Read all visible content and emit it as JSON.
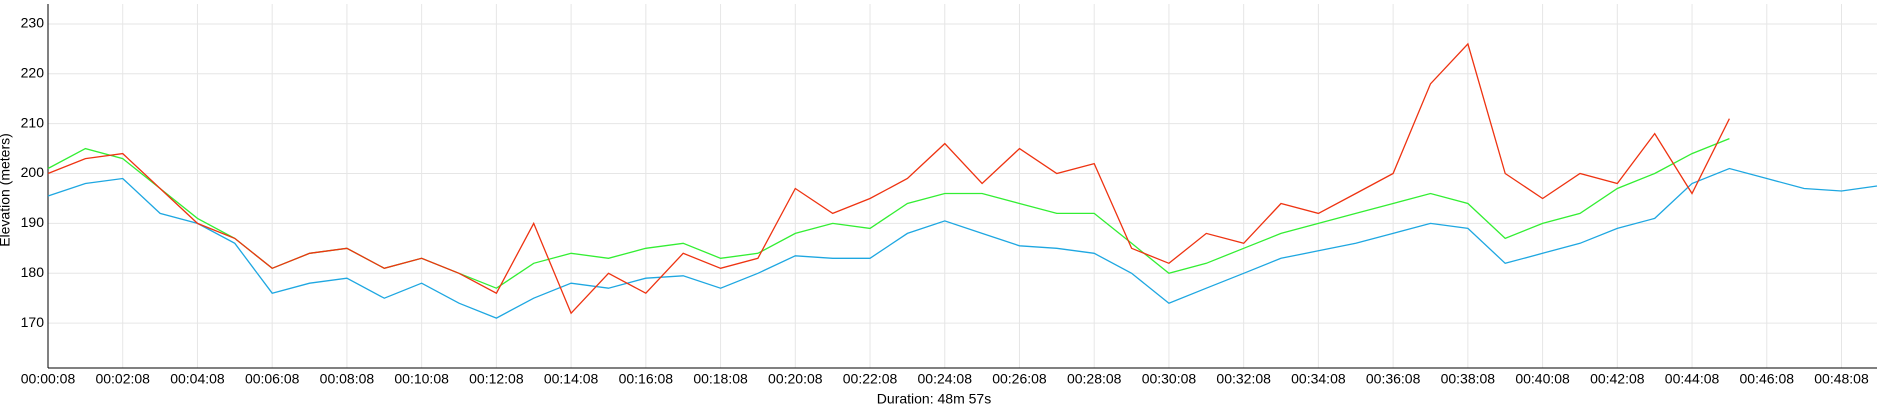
{
  "chart_data": {
    "type": "line",
    "y_label": "Elevation (meters)",
    "x_label": "Duration: 48m 57s",
    "x": [
      8,
      68,
      128,
      188,
      248,
      308,
      368,
      428,
      488,
      548,
      608,
      668,
      728,
      788,
      848,
      908,
      968,
      1028,
      1088,
      1148,
      1208,
      1268,
      1328,
      1388,
      1448,
      1508,
      1568,
      1628,
      1688,
      1748,
      1808,
      1868,
      1928,
      1988,
      2048,
      2108,
      2168,
      2228,
      2288,
      2348,
      2408,
      2468,
      2528,
      2588,
      2648,
      2708,
      2768,
      2828,
      2888,
      2945
    ],
    "xlim": [
      8,
      2945
    ],
    "ylim": [
      161,
      234
    ],
    "yticks": [
      170,
      180,
      190,
      200,
      210,
      220,
      230
    ],
    "xticks": [
      {
        "value": 8,
        "label": "00:00:08"
      },
      {
        "value": 128,
        "label": "00:02:08"
      },
      {
        "value": 248,
        "label": "00:04:08"
      },
      {
        "value": 368,
        "label": "00:06:08"
      },
      {
        "value": 488,
        "label": "00:08:08"
      },
      {
        "value": 608,
        "label": "00:10:08"
      },
      {
        "value": 728,
        "label": "00:12:08"
      },
      {
        "value": 848,
        "label": "00:14:08"
      },
      {
        "value": 968,
        "label": "00:16:08"
      },
      {
        "value": 1088,
        "label": "00:18:08"
      },
      {
        "value": 1208,
        "label": "00:20:08"
      },
      {
        "value": 1328,
        "label": "00:22:08"
      },
      {
        "value": 1448,
        "label": "00:24:08"
      },
      {
        "value": 1568,
        "label": "00:26:08"
      },
      {
        "value": 1688,
        "label": "00:28:08"
      },
      {
        "value": 1808,
        "label": "00:30:08"
      },
      {
        "value": 1928,
        "label": "00:32:08"
      },
      {
        "value": 2048,
        "label": "00:34:08"
      },
      {
        "value": 2168,
        "label": "00:36:08"
      },
      {
        "value": 2288,
        "label": "00:38:08"
      },
      {
        "value": 2408,
        "label": "00:40:08"
      },
      {
        "value": 2528,
        "label": "00:42:08"
      },
      {
        "value": 2648,
        "label": "00:44:08"
      },
      {
        "value": 2768,
        "label": "00:46:08"
      },
      {
        "value": 2888,
        "label": "00:48:08"
      }
    ],
    "grid": true,
    "series": [
      {
        "color": "#1ea7e1",
        "values": [
          195.5,
          198,
          199,
          192,
          190,
          186,
          176,
          178,
          179,
          175,
          178,
          174,
          171,
          175,
          178,
          177,
          179,
          179.5,
          177,
          180,
          183.5,
          183,
          183,
          188,
          190.5,
          188,
          185.5,
          185,
          184,
          180,
          174,
          177,
          180,
          183,
          184.5,
          186,
          188,
          190,
          189,
          182,
          184,
          186,
          189,
          191,
          198,
          201,
          199,
          197,
          196.5,
          197.5
        ]
      },
      {
        "color": "#33ee33",
        "values": [
          201,
          205,
          203,
          197,
          191,
          187,
          181,
          184,
          185,
          181,
          183,
          180,
          177,
          182,
          184,
          183,
          185,
          186,
          183,
          184,
          188,
          190,
          189,
          194,
          196,
          196,
          194,
          192,
          192,
          186,
          180,
          182,
          185,
          188,
          190,
          192,
          194,
          196,
          194,
          187,
          190,
          192,
          197,
          200,
          204,
          207,
          null,
          null,
          null,
          null
        ]
      },
      {
        "color": "#ee3311",
        "values": [
          200,
          203,
          204,
          197,
          190,
          187,
          181,
          184,
          185,
          181,
          183,
          180,
          176,
          190,
          172,
          180,
          176,
          184,
          181,
          183,
          197,
          192,
          195,
          199,
          206,
          198,
          205,
          200,
          202,
          185,
          182,
          188,
          186,
          194,
          192,
          196,
          200,
          218,
          226,
          200,
          195,
          200,
          198,
          208,
          196,
          211,
          null,
          null,
          null,
          null
        ]
      }
    ]
  }
}
